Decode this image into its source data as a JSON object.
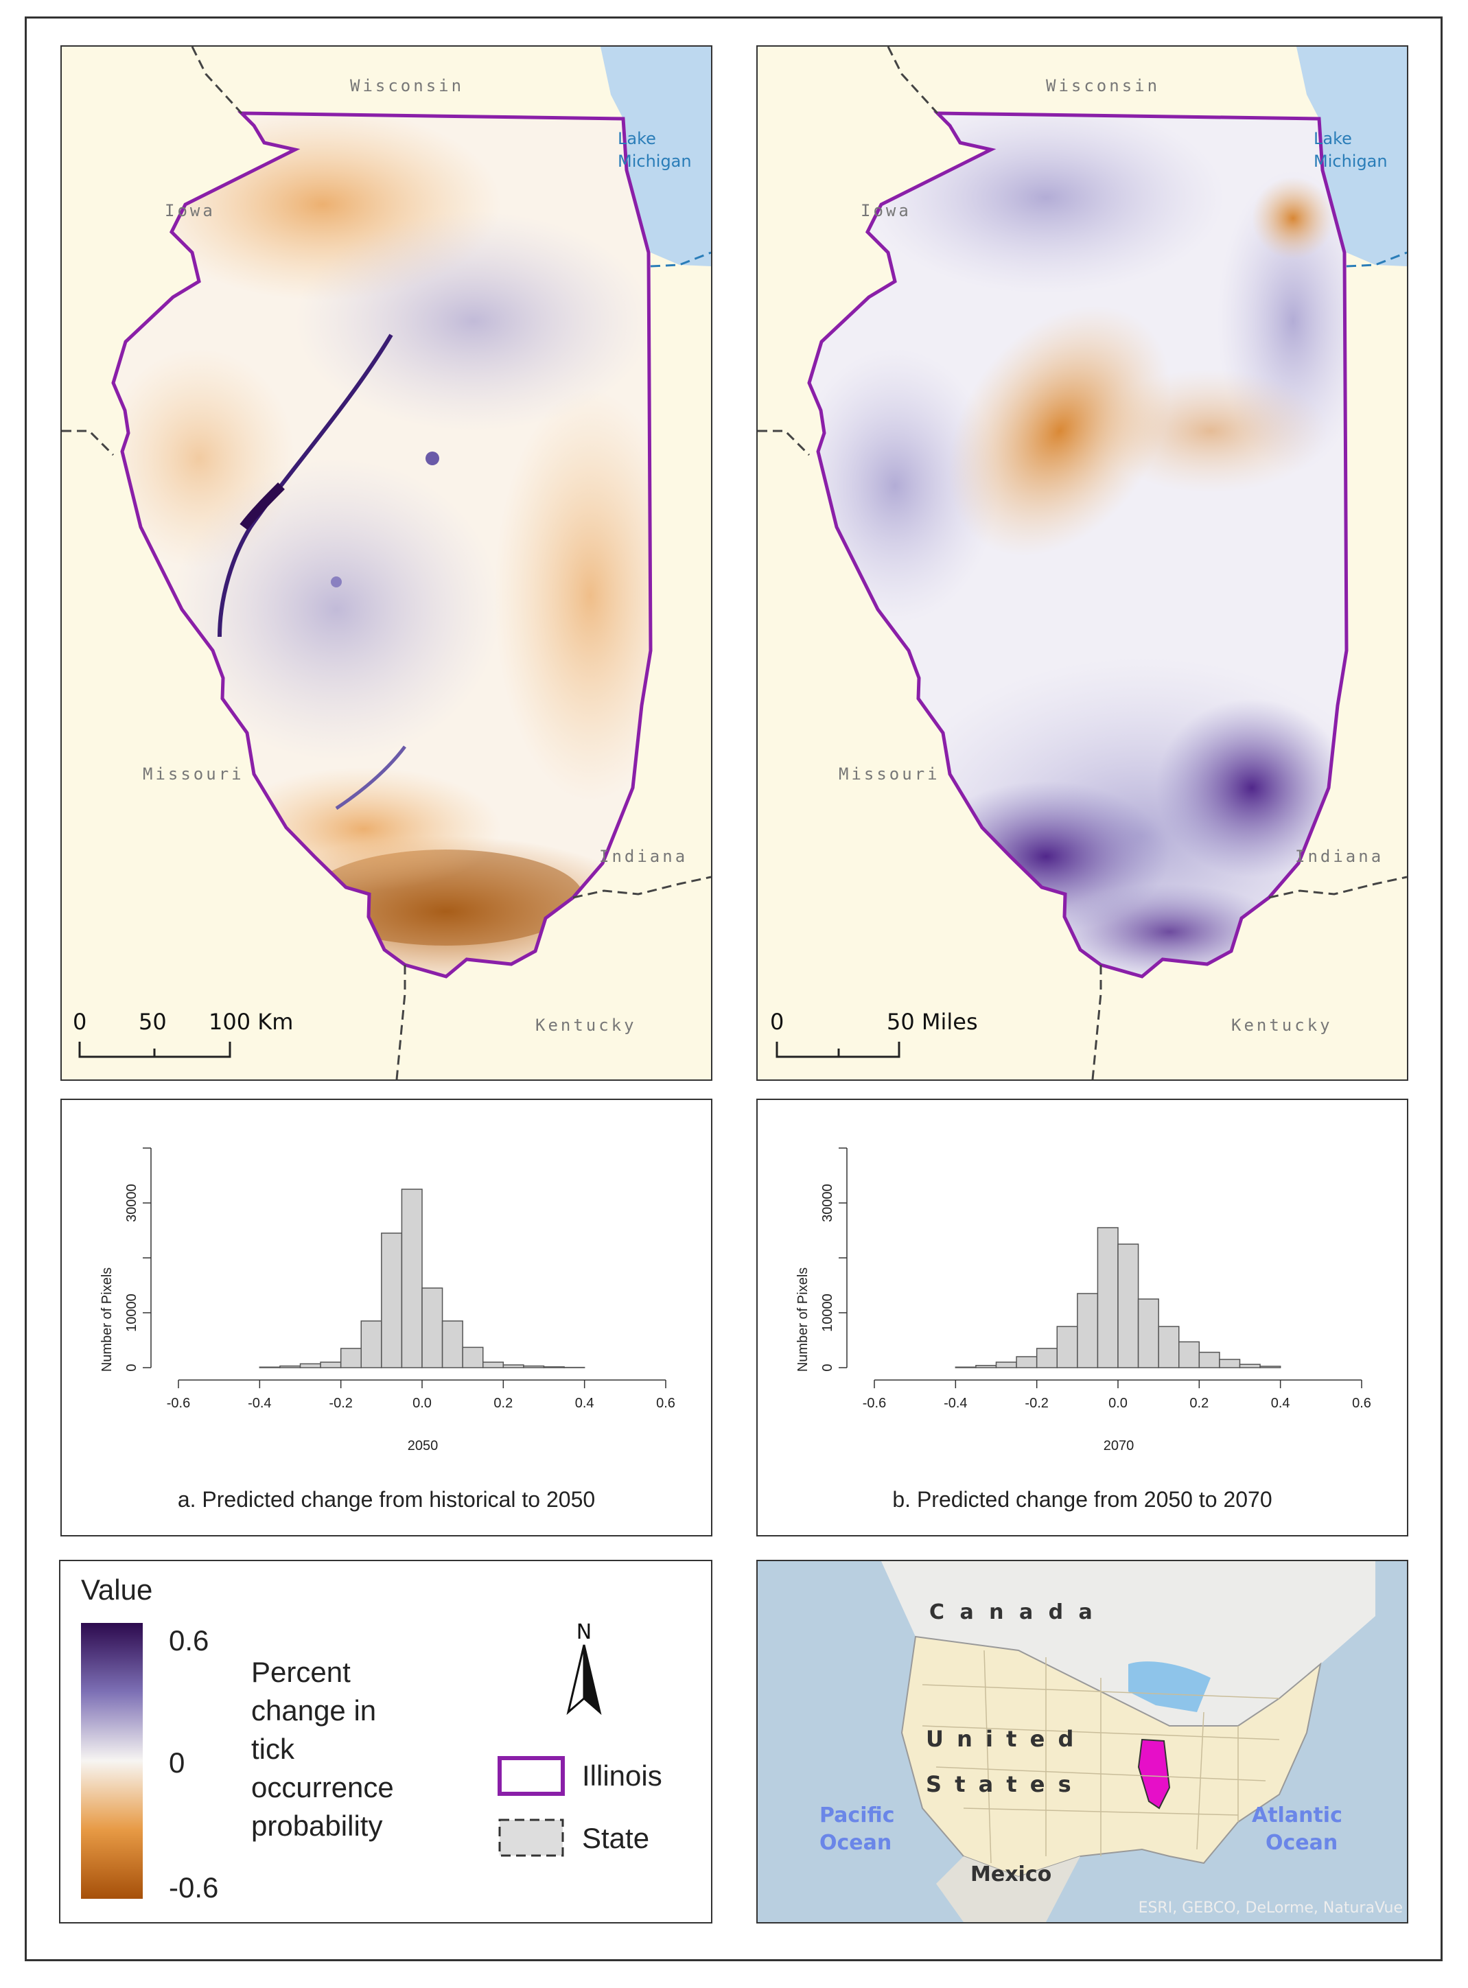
{
  "map_a": {
    "labels": {
      "wisconsin": "Wisconsin",
      "iowa": "Iowa",
      "lake": [
        "Lake",
        "Michigan"
      ],
      "missouri": "Missouri",
      "indiana": "Indiana",
      "kentucky": "Kentucky"
    },
    "scale": {
      "t0": "0",
      "t1": "50",
      "t2": "100 Km"
    }
  },
  "map_b": {
    "labels": {
      "wisconsin": "Wisconsin",
      "iowa": "Iowa",
      "lake": [
        "Lake",
        "Michigan"
      ],
      "missouri": "Missouri",
      "indiana": "Indiana",
      "kentucky": "Kentucky"
    },
    "scale": {
      "t0": "0",
      "t1": "50 Miles"
    }
  },
  "chart_data": [
    {
      "type": "bar",
      "title": "",
      "xlabel": "2050",
      "ylabel": "Number of Pixels",
      "xlim": [
        -0.6,
        0.6
      ],
      "ylim": [
        0,
        40000
      ],
      "xticks": [
        "-0.6",
        "-0.4",
        "-0.2",
        "0.0",
        "0.2",
        "0.4",
        "0.6"
      ],
      "yticks": [
        "0",
        "10000",
        "30000"
      ],
      "bin_width": 0.05,
      "bin_start": -0.4,
      "values": [
        100,
        300,
        700,
        1000,
        3500,
        8500,
        24500,
        32500,
        14500,
        8500,
        3700,
        1000,
        500,
        300,
        150,
        50
      ]
    },
    {
      "type": "bar",
      "title": "",
      "xlabel": "2070",
      "ylabel": "Number of Pixels",
      "xlim": [
        -0.6,
        0.6
      ],
      "ylim": [
        0,
        40000
      ],
      "xticks": [
        "-0.6",
        "-0.4",
        "-0.2",
        "0.0",
        "0.2",
        "0.4",
        "0.6"
      ],
      "yticks": [
        "0",
        "10000",
        "30000"
      ],
      "bin_width": 0.05,
      "bin_start": -0.4,
      "values": [
        100,
        400,
        1000,
        2000,
        3500,
        7500,
        13500,
        25500,
        22500,
        12500,
        7500,
        4700,
        2800,
        1500,
        600,
        250
      ]
    }
  ],
  "captions": {
    "a": "a. Predicted change from historical to 2050",
    "b": "b. Predicted change from 2050 to 2070"
  },
  "legend": {
    "title": "Value",
    "max": "0.6",
    "mid": "0",
    "min": "-0.6",
    "description": [
      "Percent",
      "change in",
      "tick",
      "occurrence",
      "probability"
    ],
    "north": "N",
    "illinois": "Illinois",
    "state": "State",
    "colors": {
      "high": "#2d0a4e",
      "mid": "#f7f5f2",
      "low": "#a6500a",
      "illinois": "#8a1fa8"
    }
  },
  "inset": {
    "canada": "C a n a d a",
    "us1": "U n i t e d",
    "us2": "S t a t e s",
    "pacific": [
      "Pacific",
      "Ocean"
    ],
    "atlantic": [
      "Atlantic",
      "Ocean"
    ],
    "mexico": "Mexico",
    "credit": "ESRI, GEBCO, DeLorme, NaturaVue",
    "colors": {
      "ocean": "#b9cfe0",
      "land": "#f5eccc",
      "highlight": "#e60fc8"
    }
  }
}
